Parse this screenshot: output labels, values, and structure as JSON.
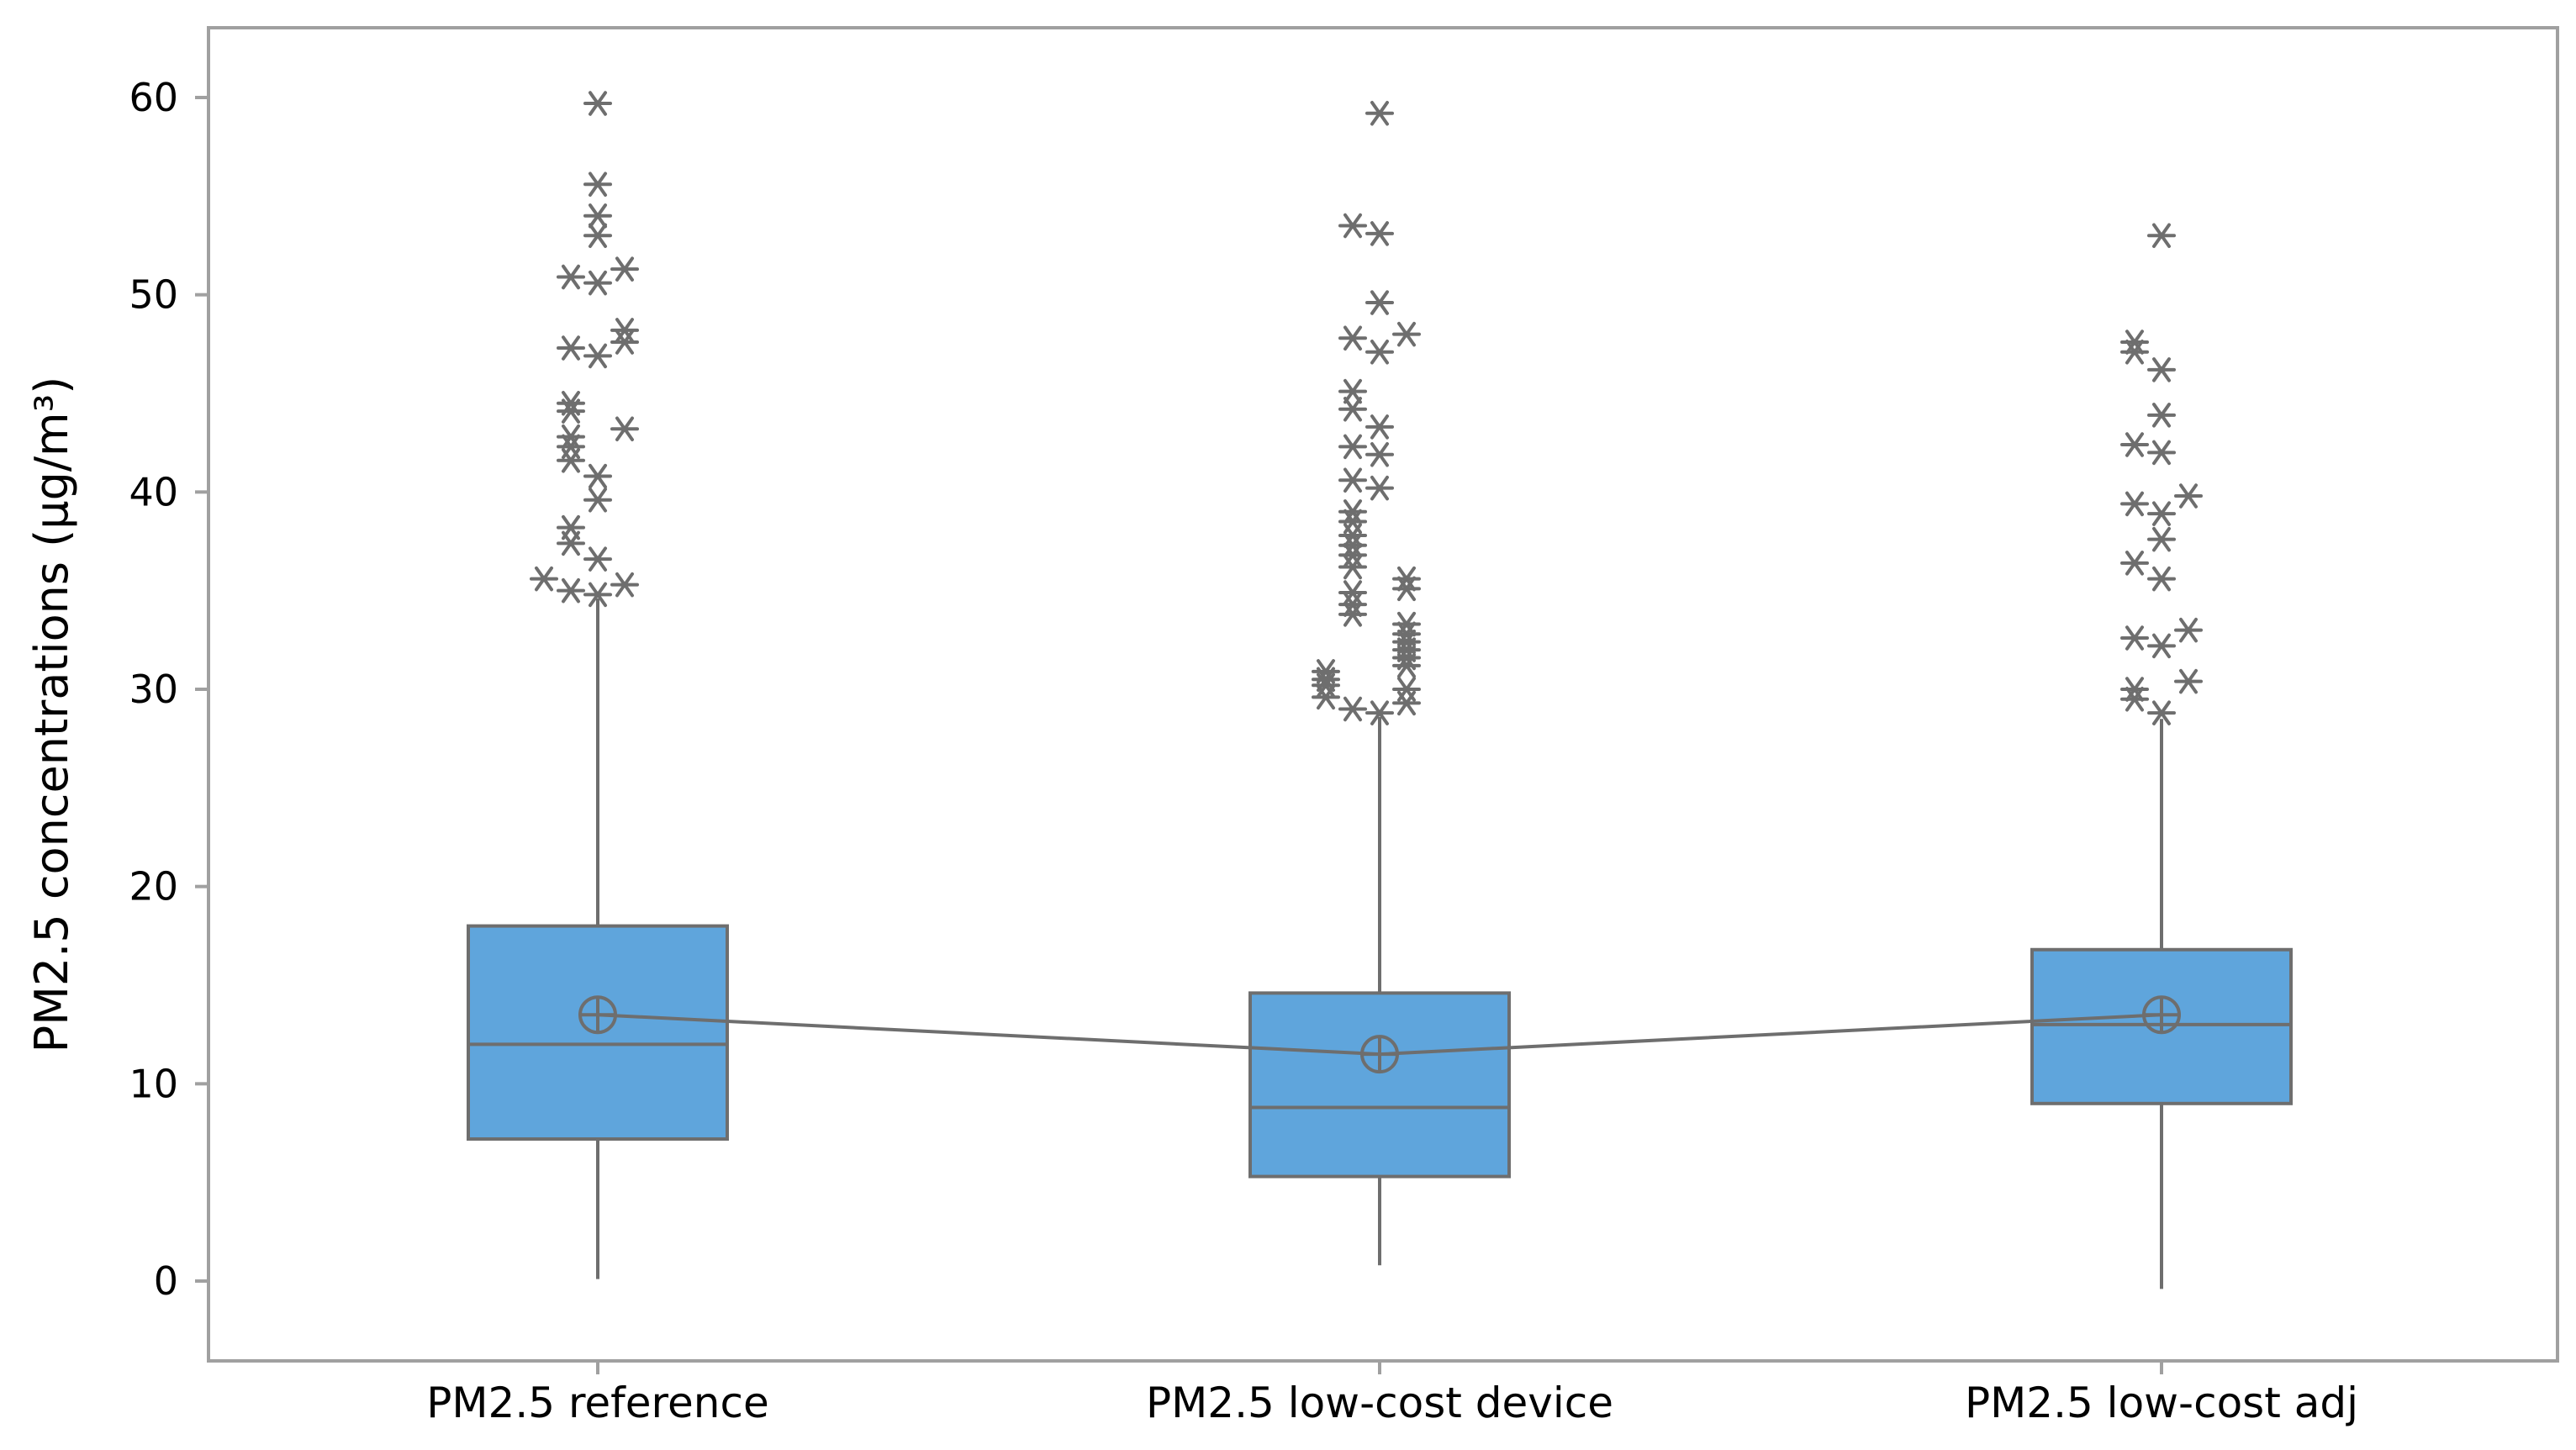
{
  "chart_data": {
    "type": "boxplot",
    "title": "",
    "xlabel": "",
    "ylabel": "PM2.5 concentrations (µg/m³)",
    "ylim": [
      -4,
      64
    ],
    "yticks": [
      0,
      10,
      20,
      30,
      40,
      50,
      60
    ],
    "grid": false,
    "legend": "none",
    "colors": {
      "box_fill": "#5fa5dc",
      "stroke": "#6e6e6e",
      "frame": "#a0a0a0"
    },
    "categories": [
      "PM2.5 reference",
      "PM2.5 low-cost device",
      "PM2.5 low-cost adj"
    ],
    "series": [
      {
        "whisker_low": 0.1,
        "q1": 7.2,
        "median": 12.0,
        "q3": 18.0,
        "whisker_high": 34.6,
        "mean": 13.5,
        "outliers": [
          34.8,
          35.0,
          35.3,
          35.6,
          36.6,
          37.4,
          38.2,
          39.6,
          40.8,
          41.6,
          42.3,
          42.8,
          43.2,
          44.1,
          44.5,
          46.9,
          47.3,
          47.6,
          48.2,
          50.6,
          50.9,
          51.3,
          53.0,
          54.0,
          55.6,
          59.7
        ]
      },
      {
        "whisker_low": 0.8,
        "q1": 5.3,
        "median": 8.8,
        "q3": 14.6,
        "whisker_high": 28.6,
        "mean": 11.5,
        "outliers": [
          28.8,
          29.0,
          29.3,
          29.6,
          30.0,
          30.2,
          30.5,
          30.9,
          31.2,
          31.6,
          32.0,
          32.4,
          32.8,
          33.3,
          33.8,
          34.3,
          34.9,
          35.1,
          35.6,
          36.2,
          36.8,
          37.3,
          37.8,
          38.5,
          39.0,
          40.2,
          40.6,
          41.9,
          42.3,
          43.3,
          44.2,
          45.1,
          47.1,
          47.8,
          48.0,
          49.6,
          53.1,
          53.5,
          59.2
        ]
      },
      {
        "whisker_low": -0.4,
        "q1": 9.0,
        "median": 13.0,
        "q3": 16.8,
        "whisker_high": 28.5,
        "mean": 13.5,
        "outliers": [
          28.8,
          29.5,
          30.0,
          30.4,
          32.2,
          32.6,
          33.0,
          35.6,
          36.4,
          37.6,
          38.9,
          39.4,
          39.8,
          42.0,
          42.4,
          43.9,
          46.2,
          47.1,
          47.6,
          53.0
        ]
      }
    ]
  }
}
